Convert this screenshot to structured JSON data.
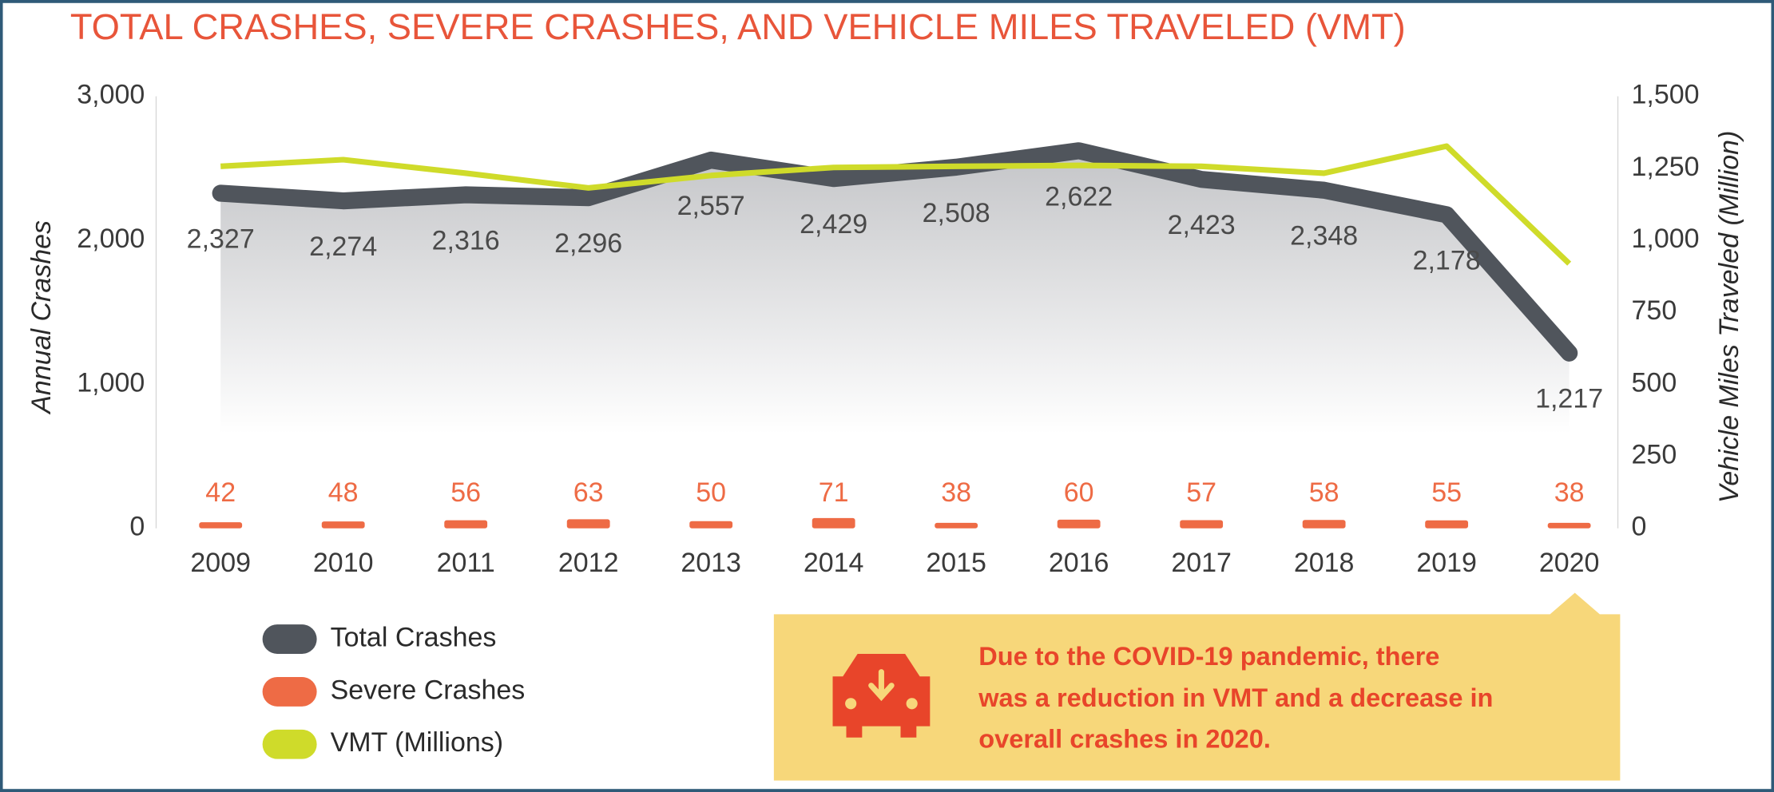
{
  "chart_data": {
    "type": "line",
    "title": "TOTAL CRASHES, SEVERE CRASHES, AND VEHICLE MILES TRAVELED (VMT)",
    "ylabel": "Annual Crashes",
    "y2label": "Vehicle Miles Traveled (Million)",
    "categories": [
      "2009",
      "2010",
      "2011",
      "2012",
      "2013",
      "2014",
      "2015",
      "2016",
      "2017",
      "2018",
      "2019",
      "2020"
    ],
    "series": [
      {
        "name": "Total Crashes",
        "type": "area",
        "color": "#50555c",
        "values": [
          2327,
          2274,
          2316,
          2296,
          2557,
          2429,
          2508,
          2622,
          2423,
          2348,
          2178,
          1217
        ],
        "value_labels": [
          "2,327",
          "2,274",
          "2,316",
          "2,296",
          "2,557",
          "2,429",
          "2,508",
          "2,622",
          "2,423",
          "2,348",
          "2,178",
          "1,217"
        ]
      },
      {
        "name": "Severe Crashes",
        "type": "bar",
        "color": "#ee6b45",
        "values": [
          42,
          48,
          56,
          63,
          50,
          71,
          38,
          60,
          57,
          58,
          55,
          38
        ]
      },
      {
        "name": "VMT (Millions)",
        "type": "line",
        "axis": "y2",
        "color": "#cfdb2a",
        "values": [
          1257,
          1280,
          1233,
          1182,
          1225,
          1253,
          1257,
          1260,
          1257,
          1233,
          1327,
          919
        ]
      }
    ],
    "ylim": [
      0,
      3000
    ],
    "yticks": [
      0,
      {
        "value": 1000,
        "label": "1,000"
      },
      {
        "value": 2000,
        "label": "2,000"
      },
      {
        "value": 3000,
        "label": "3,000"
      }
    ],
    "y2lim": [
      0,
      1500
    ],
    "y2ticks": [
      0,
      250,
      500,
      750,
      {
        "value": 1000,
        "label": "1,000"
      },
      {
        "value": 1250,
        "label": "1,250"
      },
      {
        "value": 1500,
        "label": "1,500"
      }
    ],
    "grid": false,
    "annotation": [
      "Due to the COVID-19 pandemic, there",
      "was a reduction in VMT and a decrease in",
      "overall crashes in 2020."
    ]
  }
}
